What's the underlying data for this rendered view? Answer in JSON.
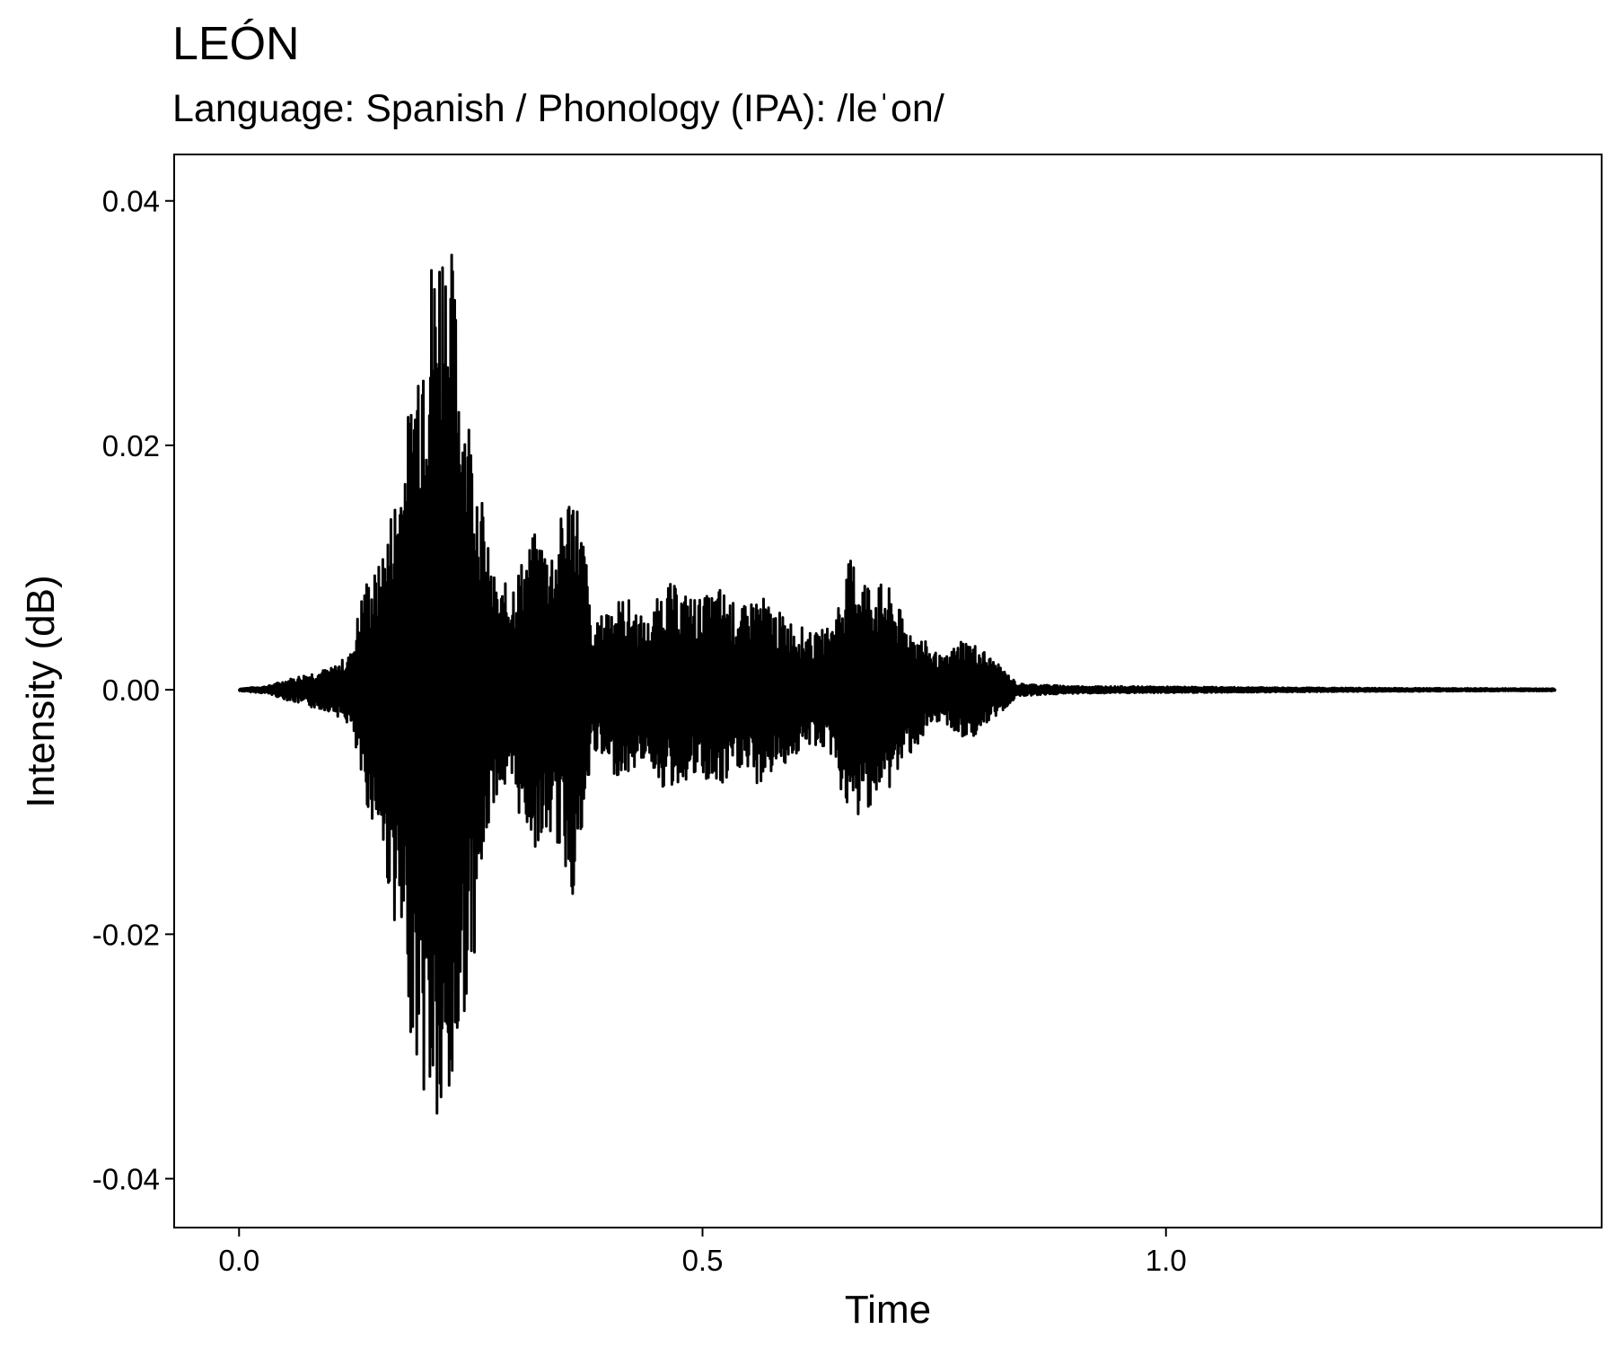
{
  "chart_data": {
    "type": "line",
    "title": "LEÓN",
    "subtitle": "Language: Spanish / Phonology (IPA): /leˈon/",
    "xlabel": "Time",
    "ylabel": "Intensity (dB)",
    "xlim": [
      -0.07,
      1.47
    ],
    "ylim": [
      -0.044,
      0.0438
    ],
    "x_ticks": [
      0.0,
      0.5,
      1.0
    ],
    "x_tick_labels": [
      "0.0",
      "0.5",
      "1.0"
    ],
    "y_ticks": [
      0.04,
      0.02,
      0.0,
      -0.02,
      -0.04
    ],
    "y_tick_labels": [
      "0.04",
      "0.02",
      "0.00",
      "-0.02",
      "-0.04"
    ],
    "grid": false,
    "line_color": "#000000",
    "series": [
      {
        "envelope": {
          "t": [
            0.0,
            0.03,
            0.05,
            0.08,
            0.1,
            0.12,
            0.135,
            0.15,
            0.17,
            0.185,
            0.2,
            0.21,
            0.22,
            0.23,
            0.24,
            0.255,
            0.27,
            0.28,
            0.3,
            0.32,
            0.34,
            0.36,
            0.375,
            0.38,
            0.4,
            0.42,
            0.44,
            0.46,
            0.48,
            0.5,
            0.52,
            0.54,
            0.56,
            0.58,
            0.6,
            0.62,
            0.64,
            0.66,
            0.68,
            0.7,
            0.72,
            0.74,
            0.76,
            0.78,
            0.8,
            0.82,
            0.84,
            0.9,
            1.0,
            1.2,
            1.42
          ],
          "upper": [
            0.0001,
            0.0003,
            0.0008,
            0.0015,
            0.0018,
            0.003,
            0.009,
            0.01,
            0.017,
            0.024,
            0.035,
            0.037,
            0.04,
            0.036,
            0.027,
            0.02,
            0.011,
            0.008,
            0.01,
            0.013,
            0.012,
            0.018,
            0.011,
            0.0045,
            0.0075,
            0.0075,
            0.0055,
            0.009,
            0.008,
            0.0075,
            0.0085,
            0.0065,
            0.008,
            0.0065,
            0.0055,
            0.0045,
            0.0055,
            0.011,
            0.009,
            0.0085,
            0.0055,
            0.004,
            0.0025,
            0.0043,
            0.0035,
            0.002,
            0.0005,
            0.0003,
            0.00025,
            0.00015,
            0.0001
          ],
          "lower": [
            -0.0001,
            -0.0003,
            -0.0008,
            -0.0015,
            -0.0018,
            -0.003,
            -0.009,
            -0.012,
            -0.02,
            -0.028,
            -0.034,
            -0.036,
            -0.04,
            -0.035,
            -0.028,
            -0.021,
            -0.011,
            -0.008,
            -0.01,
            -0.013,
            -0.012,
            -0.017,
            -0.011,
            -0.0045,
            -0.007,
            -0.007,
            -0.0055,
            -0.0085,
            -0.0075,
            -0.0075,
            -0.0085,
            -0.0065,
            -0.008,
            -0.0065,
            -0.0055,
            -0.0045,
            -0.0055,
            -0.0115,
            -0.0095,
            -0.0085,
            -0.0055,
            -0.004,
            -0.0025,
            -0.0043,
            -0.0035,
            -0.002,
            -0.0005,
            -0.0003,
            -0.00025,
            -0.00015,
            -0.0001
          ]
        }
      }
    ]
  }
}
